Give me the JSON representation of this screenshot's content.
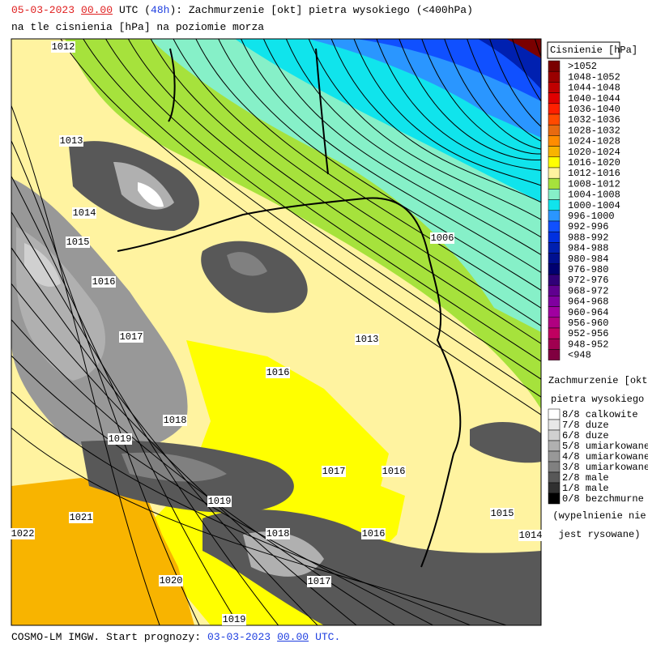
{
  "header": {
    "line1": [
      "05-03-2023",
      "00.00",
      "UTC (",
      "48h",
      "): Zachmurzenie [okt] pietra wysokiego (<400hPa)"
    ],
    "line2": "na tle cisnienia [hPa] na poziomie morza"
  },
  "map": {
    "isobar_labels": [
      "1012",
      "1013",
      "1014",
      "1015",
      "1016",
      "1017",
      "1018",
      "1019",
      "1006",
      "1013",
      "1016",
      "1017",
      "1016",
      "1019",
      "1021",
      "1022",
      "1018",
      "1016",
      "1015",
      "1014",
      "1020",
      "1017",
      "1019"
    ]
  },
  "legend_pressure": {
    "title": "Cisnienie [hPa]",
    "items": [
      {
        "label": ">1052",
        "color": "#7a0000"
      },
      {
        "label": "1048-1052",
        "color": "#9a0000"
      },
      {
        "label": "1044-1048",
        "color": "#c00000"
      },
      {
        "label": "1040-1044",
        "color": "#e00000"
      },
      {
        "label": "1036-1040",
        "color": "#ff2000"
      },
      {
        "label": "1032-1036",
        "color": "#ff4a00"
      },
      {
        "label": "1028-1032",
        "color": "#e86a10"
      },
      {
        "label": "1024-1028",
        "color": "#ff8c00"
      },
      {
        "label": "1020-1024",
        "color": "#f8b400"
      },
      {
        "label": "1016-1020",
        "color": "#ffff00"
      },
      {
        "label": "1012-1016",
        "color": "#fff3a0"
      },
      {
        "label": "1008-1012",
        "color": "#a6e23c"
      },
      {
        "label": "1004-1008",
        "color": "#86f0c8"
      },
      {
        "label": "1000-1004",
        "color": "#10e4ec"
      },
      {
        "label": "996-1000",
        "color": "#2a96ff"
      },
      {
        "label": "992-996",
        "color": "#1050ff"
      },
      {
        "label": "988-992",
        "color": "#0030e0"
      },
      {
        "label": "984-988",
        "color": "#0020b0"
      },
      {
        "label": "980-984",
        "color": "#001090"
      },
      {
        "label": "976-980",
        "color": "#000070"
      },
      {
        "label": "972-976",
        "color": "#300078"
      },
      {
        "label": "968-972",
        "color": "#600090"
      },
      {
        "label": "964-968",
        "color": "#8000a0"
      },
      {
        "label": "960-964",
        "color": "#a000a0"
      },
      {
        "label": "956-960",
        "color": "#b00080"
      },
      {
        "label": "952-956",
        "color": "#c00060"
      },
      {
        "label": "948-952",
        "color": "#a00050"
      },
      {
        "label": "<948",
        "color": "#800040"
      }
    ]
  },
  "legend_clouds": {
    "title": [
      "Zachmurzenie [okt]",
      "pietra wysokiego"
    ],
    "items": [
      {
        "label": "8/8 calkowite",
        "color": "#ffffff"
      },
      {
        "label": "7/8 duze",
        "color": "#e8e8e8"
      },
      {
        "label": "6/8 duze",
        "color": "#d0d0d0"
      },
      {
        "label": "5/8 umiarkowane",
        "color": "#b0b0b0"
      },
      {
        "label": "4/8 umiarkowane",
        "color": "#989898"
      },
      {
        "label": "3/8 umiarkowane",
        "color": "#808080"
      },
      {
        "label": "2/8 male",
        "color": "#585858"
      },
      {
        "label": "1/8 male",
        "color": "#303030"
      },
      {
        "label": "0/8 bezchmurne",
        "color": "#000000"
      }
    ],
    "note": [
      "(wypelnienie nie",
      "jest rysowane)"
    ]
  },
  "footer": [
    "COSMO-LM IMGW. Start prognozy:",
    "03-03-2023",
    "00.00",
    "UTC."
  ]
}
